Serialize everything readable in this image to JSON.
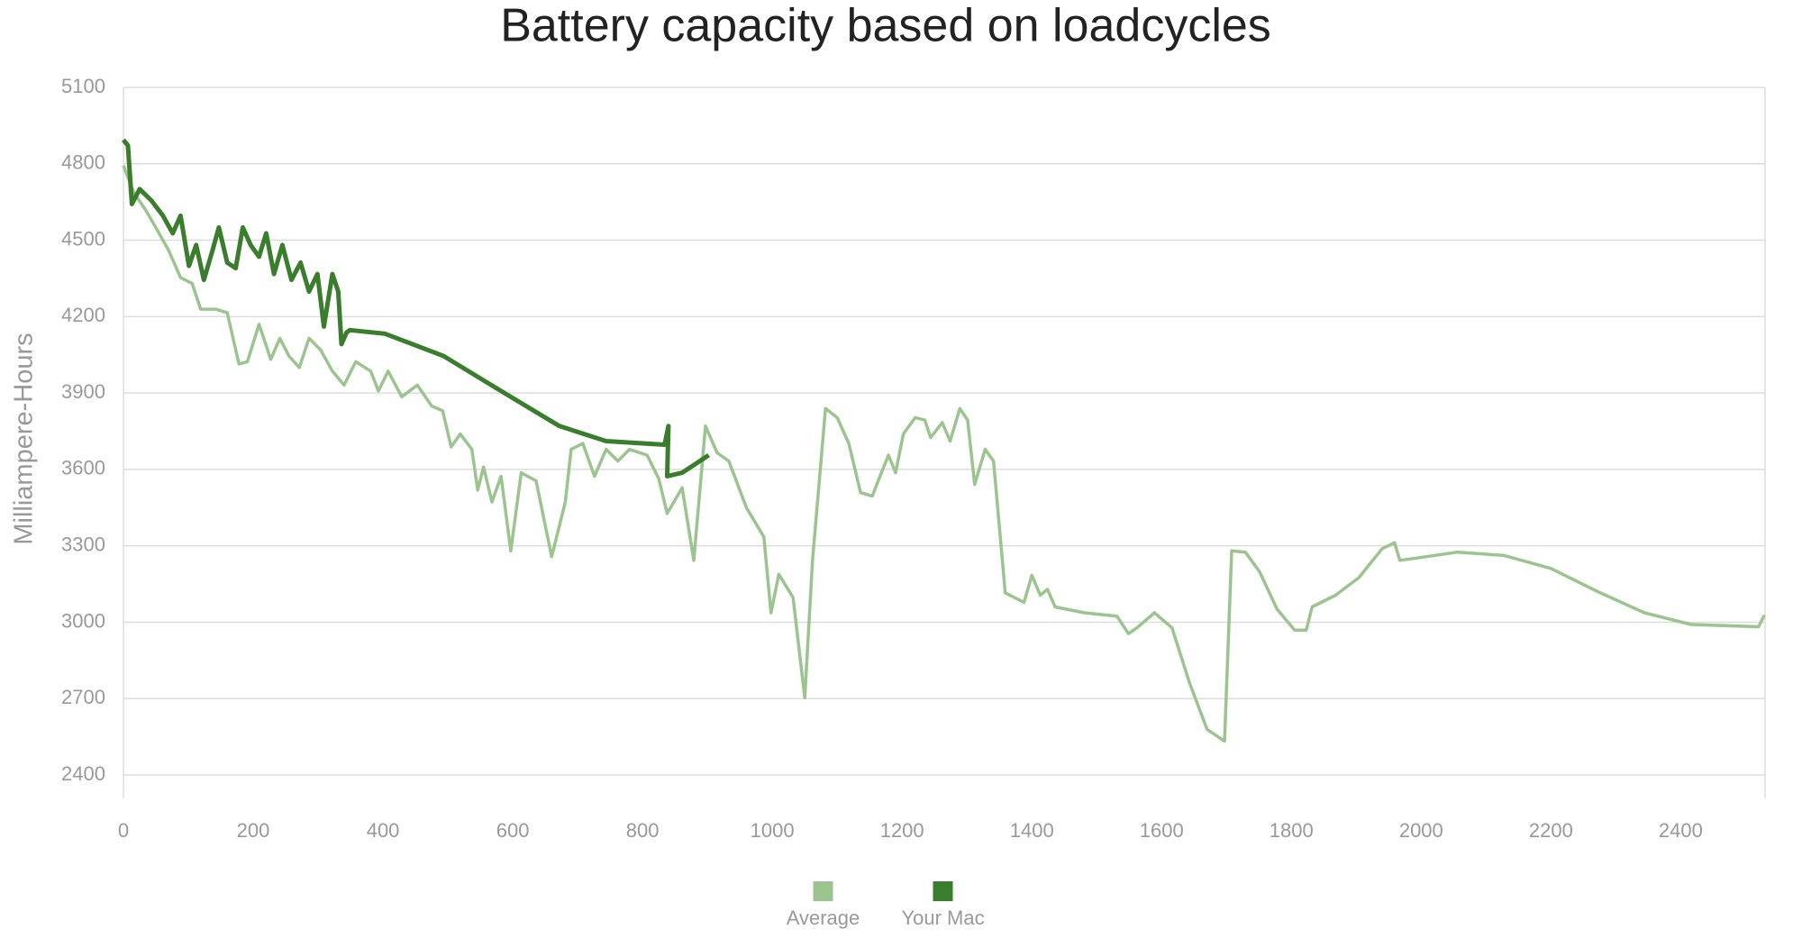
{
  "chart_data": {
    "type": "line",
    "title": "Battery capacity based on loadcycles",
    "y_label": "Milliampere-Hours",
    "xlim": [
      0,
      2530
    ],
    "xticks": [
      0,
      200,
      400,
      600,
      800,
      1000,
      1200,
      1400,
      1600,
      1800,
      2000,
      2200,
      2400
    ],
    "ylim": [
      2400,
      5100
    ],
    "yticks": [
      2400,
      2700,
      3000,
      3300,
      3600,
      3900,
      4200,
      4500,
      4800,
      5100
    ],
    "grid": true,
    "legend": "bottom",
    "series": [
      {
        "name": "Average",
        "color": "#9bc48f",
        "x": [
          0,
          16,
          34,
          52,
          70,
          88,
          106,
          119,
          142,
          160,
          178,
          191,
          209,
          227,
          241,
          255,
          271,
          286,
          304,
          322,
          340,
          358,
          381,
          393,
          408,
          429,
          453,
          475,
          492,
          505,
          519,
          537,
          546,
          555,
          568,
          582,
          597,
          613,
          636,
          660,
          681,
          690,
          708,
          726,
          744,
          762,
          780,
          807,
          825,
          838,
          861,
          879,
          897,
          915,
          933,
          960,
          987,
          998,
          1010,
          1032,
          1050,
          1062,
          1082,
          1100,
          1118,
          1136,
          1154,
          1166,
          1179,
          1190,
          1202,
          1220,
          1235,
          1244,
          1262,
          1274,
          1289,
          1301,
          1312,
          1328,
          1341,
          1359,
          1388,
          1400,
          1413,
          1424,
          1436,
          1481,
          1531,
          1549,
          1562,
          1589,
          1616,
          1643,
          1670,
          1697,
          1708,
          1729,
          1751,
          1778,
          1805,
          1823,
          1832,
          1868,
          1904,
          1940,
          1959,
          1967,
          1994,
          2056,
          2128,
          2200,
          2272,
          2344,
          2416,
          2520,
          2529
        ],
        "values": [
          4793,
          4687,
          4619,
          4541,
          4458,
          4353,
          4330,
          4229,
          4229,
          4215,
          4014,
          4023,
          4170,
          4032,
          4115,
          4046,
          4000,
          4115,
          4069,
          3986,
          3931,
          4023,
          3986,
          3908,
          3986,
          3885,
          3931,
          3849,
          3830,
          3688,
          3739,
          3679,
          3519,
          3610,
          3472,
          3573,
          3280,
          3587,
          3555,
          3257,
          3472,
          3679,
          3702,
          3573,
          3679,
          3633,
          3679,
          3656,
          3564,
          3427,
          3528,
          3243,
          3770,
          3665,
          3633,
          3450,
          3335,
          3037,
          3188,
          3097,
          2703,
          3243,
          3839,
          3803,
          3702,
          3509,
          3495,
          3573,
          3656,
          3587,
          3739,
          3803,
          3794,
          3725,
          3784,
          3711,
          3839,
          3794,
          3541,
          3679,
          3633,
          3115,
          3078,
          3184,
          3106,
          3129,
          3060,
          3037,
          3024,
          2955,
          2978,
          3037,
          2978,
          2762,
          2579,
          2533,
          3280,
          3275,
          3198,
          3051,
          2969,
          2969,
          3060,
          3106,
          3175,
          3289,
          3312,
          3243,
          3252,
          3275,
          3262,
          3211,
          3120,
          3037,
          2991,
          2982,
          3028
        ]
      },
      {
        "name": "Your Mac",
        "color": "#3a7d2c",
        "x": [
          0,
          7,
          13,
          25,
          43,
          61,
          76,
          88,
          101,
          112,
          124,
          137,
          147,
          160,
          173,
          184,
          196,
          209,
          220,
          232,
          245,
          259,
          273,
          286,
          299,
          309,
          322,
          331,
          336,
          344,
          349,
          403,
          493,
          582,
          672,
          744,
          834,
          840,
          838,
          861,
          902
        ],
        "values": [
          4894,
          4871,
          4642,
          4701,
          4656,
          4596,
          4527,
          4596,
          4399,
          4481,
          4344,
          4458,
          4550,
          4412,
          4390,
          4550,
          4481,
          4435,
          4527,
          4367,
          4481,
          4344,
          4412,
          4298,
          4367,
          4161,
          4367,
          4298,
          4092,
          4138,
          4147,
          4133,
          4046,
          3908,
          3770,
          3711,
          3697,
          3770,
          3573,
          3587,
          3656
        ]
      }
    ]
  }
}
